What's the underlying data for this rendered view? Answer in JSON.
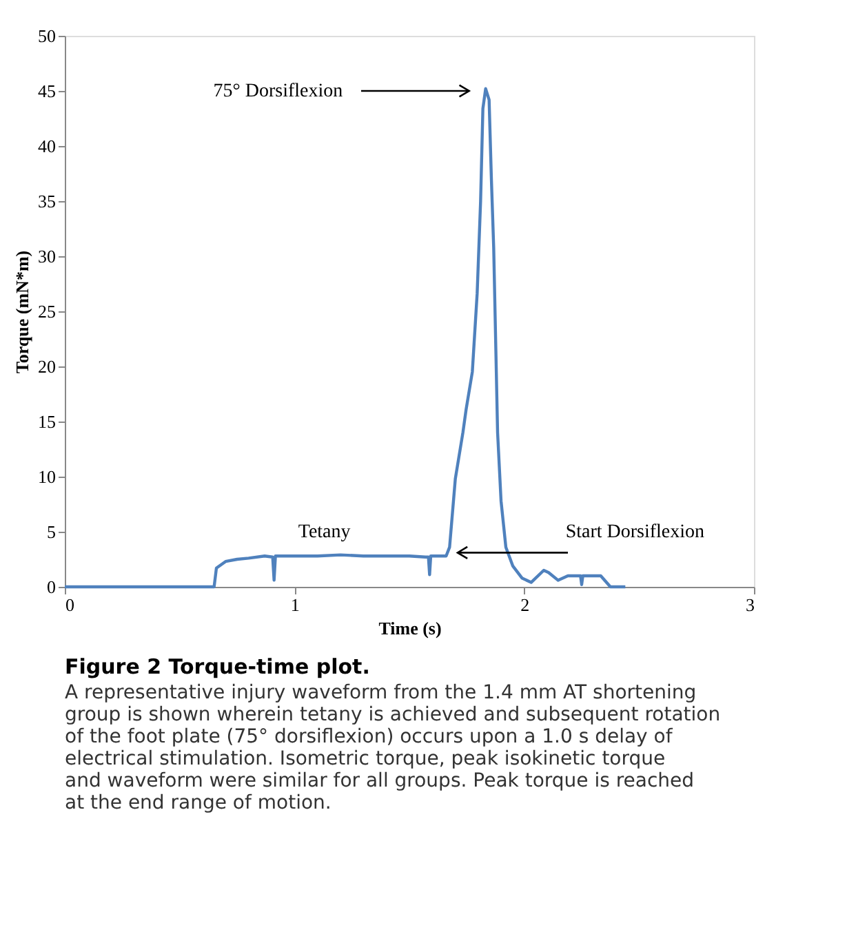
{
  "chart_data": {
    "type": "line",
    "title": "Figure 2 Torque-time plot.",
    "subtitle": "A representative injury waveform from the 1.4 mm AT shortening group is shown wherein tetany is achieved and subsequent rotation of the foot plate (75° dorsiflexion) occurs upon a 1.0 s delay of electrical stimulation. Isometric torque, peak isokinetic torque and waveform were similar for all groups. Peak torque is reached at the end range of motion.",
    "xlabel": "Time (s)",
    "ylabel": "Torque (mN*m)",
    "xlim": [
      0,
      3
    ],
    "xticks": [
      0,
      1,
      2,
      3
    ],
    "ylim": [
      0,
      50
    ],
    "yticks": [
      0,
      5,
      10,
      15,
      20,
      25,
      30,
      35,
      40,
      45,
      50
    ],
    "grid": false,
    "marker": "none",
    "line_style": "solid",
    "series": [
      {
        "color": "#4f81bd",
        "x": [
          0,
          0.3,
          0.65,
          0.66,
          0.7,
          0.75,
          0.8,
          0.87,
          0.905,
          0.911,
          0.917,
          1.0,
          1.1,
          1.2,
          1.3,
          1.4,
          1.5,
          1.57,
          1.583,
          1.588,
          1.593,
          1.66,
          1.675,
          1.7,
          1.733,
          1.747,
          1.774,
          1.795,
          1.81,
          1.82,
          1.832,
          1.847,
          1.857,
          1.867,
          1.884,
          1.899,
          1.92,
          1.95,
          1.99,
          2.03,
          2.085,
          2.106,
          2.147,
          2.19,
          2.245,
          2.25,
          2.255,
          2.333,
          2.375,
          2.44
        ],
        "values": [
          0,
          0,
          0,
          1.7,
          2.3,
          2.5,
          2.6,
          2.8,
          2.7,
          0.6,
          2.8,
          2.8,
          2.8,
          2.9,
          2.8,
          2.8,
          2.8,
          2.7,
          2.7,
          1.1,
          2.8,
          2.8,
          3.6,
          9.8,
          14,
          16.1,
          19.5,
          26.6,
          35,
          43.4,
          45.2,
          44.2,
          37,
          30.8,
          14,
          7.8,
          3.6,
          1.9,
          0.8,
          0.4,
          1.5,
          1.3,
          0.6,
          1.0,
          1.0,
          0.2,
          1.0,
          1.0,
          0,
          0
        ]
      }
    ],
    "annotations": [
      "75° Dorsiflexion",
      {
        "text": "Tetany",
        "x": 1.13,
        "y": 2.8
      },
      {
        "text": "Start Dorsiflexion",
        "x": 1.7,
        "y": 3.1
      }
    ]
  }
}
